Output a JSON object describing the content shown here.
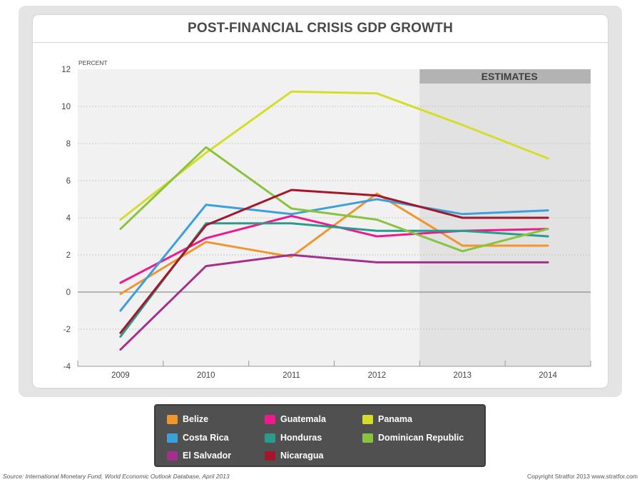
{
  "chart_data": {
    "type": "line",
    "title": "POST-FINANCIAL CRISIS GDP GROWTH",
    "ylabel": "PERCENT",
    "xlabel": "",
    "x": [
      "2009",
      "2010",
      "2011",
      "2012",
      "2013",
      "2014"
    ],
    "ylim": [
      -4,
      12
    ],
    "yticks": [
      12,
      10,
      8,
      6,
      4,
      2,
      0,
      -2,
      -4
    ],
    "grid": true,
    "estimates_label": "ESTIMATES",
    "estimates_from": "2013",
    "legend_position": "bottom",
    "series": [
      {
        "name": "Belize",
        "color": "#f0962c",
        "values": [
          -0.1,
          2.7,
          1.9,
          5.3,
          2.5,
          2.5
        ]
      },
      {
        "name": "Guatemala",
        "color": "#ec1a8c",
        "values": [
          0.5,
          2.9,
          4.1,
          3.0,
          3.3,
          3.4
        ]
      },
      {
        "name": "Panama",
        "color": "#d4de2a",
        "values": [
          3.9,
          7.5,
          10.8,
          10.7,
          9.0,
          7.2
        ]
      },
      {
        "name": "Costa Rica",
        "color": "#3ca0dc",
        "values": [
          -1.0,
          4.7,
          4.2,
          5.0,
          4.2,
          4.4
        ]
      },
      {
        "name": "Honduras",
        "color": "#2a9c8c",
        "values": [
          -2.4,
          3.7,
          3.7,
          3.3,
          3.3,
          3.0
        ]
      },
      {
        "name": "Dominican Republic",
        "color": "#8ac43e",
        "values": [
          3.4,
          7.8,
          4.5,
          3.9,
          2.2,
          3.4
        ]
      },
      {
        "name": "El Salvador",
        "color": "#a3308e",
        "values": [
          -3.1,
          1.4,
          2.0,
          1.6,
          1.6,
          1.6
        ]
      },
      {
        "name": "Nicaragua",
        "color": "#a3162c",
        "values": [
          -2.2,
          3.6,
          5.5,
          5.2,
          4.0,
          4.0
        ]
      }
    ]
  },
  "legend_items": [
    {
      "label": "Belize",
      "color": "#f0962c"
    },
    {
      "label": "Guatemala",
      "color": "#ec1a8c"
    },
    {
      "label": "Panama",
      "color": "#d4de2a"
    },
    {
      "label": "Costa Rica",
      "color": "#3ca0dc"
    },
    {
      "label": "Honduras",
      "color": "#2a9c8c"
    },
    {
      "label": "Dominican Republic",
      "color": "#8ac43e"
    },
    {
      "label": "El Salvador",
      "color": "#a3308e"
    },
    {
      "label": "Nicaragua",
      "color": "#a3162c"
    }
  ],
  "footer": {
    "source": "Source: International Monetary Fund, World Economic Outlook Database, April 2013",
    "copyright": "Copyright Stratfor 2013   www.stratfor.com"
  }
}
